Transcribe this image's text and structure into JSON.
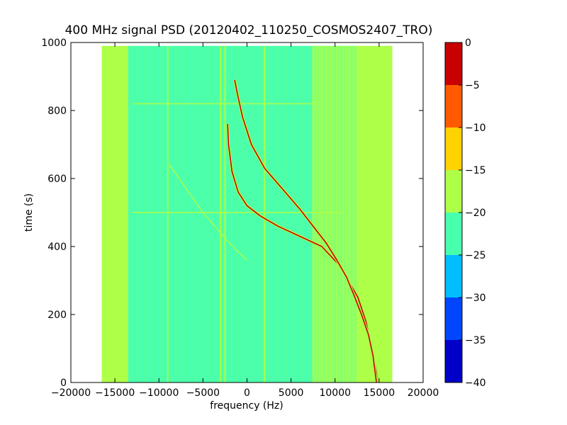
{
  "chart_data": {
    "type": "heatmap",
    "title": "400 MHz signal PSD (20120402_110250_COSMOS2407_TRO)",
    "xlabel": "frequency (Hz)",
    "ylabel": "time (s)",
    "xlim": [
      -20000,
      20000
    ],
    "ylim": [
      0,
      1000
    ],
    "xticks": [
      -20000,
      -15000,
      -10000,
      -5000,
      0,
      5000,
      10000,
      15000,
      20000
    ],
    "xtick_labels": [
      "−20000",
      "−15000",
      "−10000",
      "−5000",
      "0",
      "5000",
      "10000",
      "15000",
      "20000"
    ],
    "yticks": [
      0,
      200,
      400,
      600,
      800,
      1000
    ],
    "ytick_labels": [
      "0",
      "200",
      "400",
      "600",
      "800",
      "1000"
    ],
    "data_extent": {
      "x": [
        -16500,
        16500
      ],
      "y": [
        0,
        990
      ]
    },
    "colorbar": {
      "levels": [
        -40,
        -35,
        -30,
        -25,
        -20,
        -15,
        -10,
        -5,
        0
      ],
      "tick_labels": [
        "−40",
        "−35",
        "−30",
        "−25",
        "−20",
        "−15",
        "−10",
        "−5",
        "0"
      ],
      "colors": [
        "#0000c8",
        "#0046ff",
        "#00beff",
        "#48ffae",
        "#aeff48",
        "#ffd200",
        "#ff5a00",
        "#c80000"
      ]
    },
    "background_bands": [
      {
        "x_range": [
          -16500,
          -13500
        ],
        "level": "-20 to -15"
      },
      {
        "x_range": [
          -13500,
          7500
        ],
        "level": "-25 to -20"
      },
      {
        "x_range": [
          7500,
          12500
        ],
        "level": "mixed"
      },
      {
        "x_range": [
          12500,
          16500
        ],
        "level": "-20 to -15"
      }
    ],
    "series": [
      {
        "points": [
          [
            -2200,
            760
          ],
          [
            -2100,
            700
          ],
          [
            -1700,
            620
          ],
          [
            -1000,
            560
          ],
          [
            0,
            520
          ],
          [
            1500,
            490
          ],
          [
            3500,
            460
          ],
          [
            6000,
            430
          ],
          [
            8500,
            400
          ],
          [
            10300,
            350
          ],
          [
            11500,
            300
          ],
          [
            12600,
            250
          ],
          [
            13500,
            180
          ],
          [
            14200,
            100
          ],
          [
            14700,
            30
          ],
          [
            14800,
            0
          ]
        ],
        "level": "-5 to 0"
      },
      {
        "points": [
          [
            -1400,
            890
          ],
          [
            -1100,
            850
          ],
          [
            -500,
            780
          ],
          [
            500,
            700
          ],
          [
            2000,
            630
          ],
          [
            4000,
            570
          ],
          [
            6000,
            510
          ],
          [
            7500,
            460
          ],
          [
            9000,
            410
          ],
          [
            10200,
            360
          ],
          [
            11300,
            310
          ],
          [
            12100,
            260
          ],
          [
            13000,
            200
          ],
          [
            13800,
            140
          ],
          [
            14300,
            80
          ],
          [
            14700,
            0
          ]
        ],
        "level": "-5 to 0"
      }
    ],
    "vertical_lines": [
      {
        "x": -9000,
        "y_range": [
          0,
          990
        ]
      },
      {
        "x": -3000,
        "y_range": [
          0,
          990
        ]
      },
      {
        "x": -2500,
        "y_range": [
          0,
          990
        ]
      },
      {
        "x": 2000,
        "y_range": [
          0,
          990
        ]
      },
      {
        "x": 7500,
        "y_range": [
          0,
          990
        ]
      }
    ],
    "horizontal_lines": [
      {
        "y": 820,
        "x_range": [
          -13000,
          8000
        ]
      },
      {
        "y": 500,
        "x_range": [
          -13000,
          11000
        ]
      }
    ],
    "diagonal_traces": [
      {
        "points": [
          [
            -8800,
            640
          ],
          [
            -5000,
            500
          ],
          [
            -2000,
            410
          ],
          [
            0,
            360
          ]
        ]
      }
    ]
  }
}
